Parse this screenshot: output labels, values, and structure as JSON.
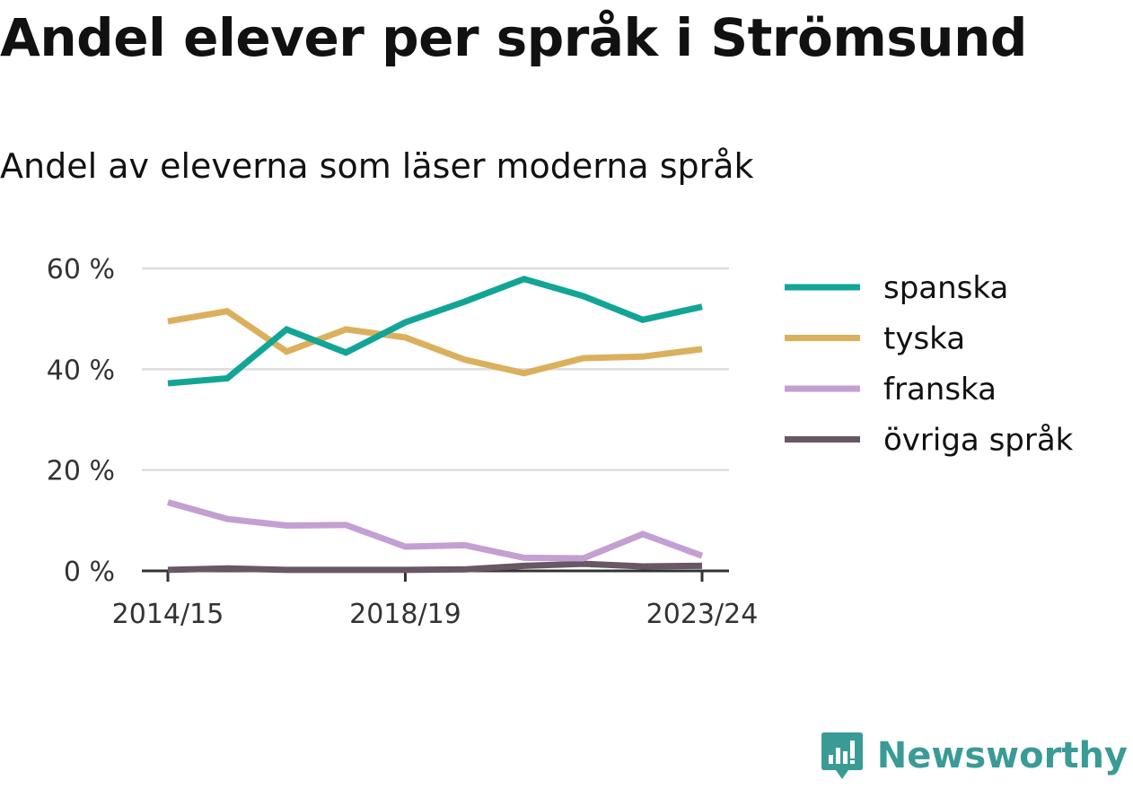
{
  "title": "Andel elever per språk i Strömsund",
  "subtitle": "Andel av eleverna som läser moderna språk",
  "brand": {
    "name": "Newsworthy",
    "color": "#3a9b96",
    "icon": "newsworthy-logo-icon"
  },
  "chart_data": {
    "type": "line",
    "x": [
      "2014/15",
      "2015/16",
      "2016/17",
      "2017/18",
      "2018/19",
      "2019/20",
      "2020/21",
      "2021/22",
      "2022/23",
      "2023/24"
    ],
    "x_tick_labels": [
      "2014/15",
      "2018/19",
      "2023/24"
    ],
    "y_ticks": [
      0,
      20,
      40,
      60
    ],
    "y_tick_labels": [
      "0 %",
      "20 %",
      "40 %",
      "60 %"
    ],
    "ylim": [
      0,
      60
    ],
    "grid": true,
    "legend_position": "right",
    "series": [
      {
        "name": "spanska",
        "color": "#12a596",
        "values": [
          37.2,
          38.2,
          47.9,
          43.3,
          49.3,
          53.4,
          57.9,
          54.5,
          49.8,
          52.4
        ]
      },
      {
        "name": "tyska",
        "color": "#dbb05d",
        "values": [
          49.5,
          51.5,
          43.5,
          47.9,
          46.3,
          41.9,
          39.2,
          42.2,
          42.5,
          44.0
        ]
      },
      {
        "name": "franska",
        "color": "#c39fd2",
        "values": [
          13.6,
          10.3,
          9.0,
          9.1,
          4.8,
          5.1,
          2.6,
          2.5,
          7.3,
          3.0
        ]
      },
      {
        "name": "övriga språk",
        "color": "#685764",
        "values": [
          0.2,
          0.5,
          0.2,
          0.2,
          0.2,
          0.3,
          1.0,
          1.4,
          0.9,
          1.0
        ]
      }
    ]
  }
}
